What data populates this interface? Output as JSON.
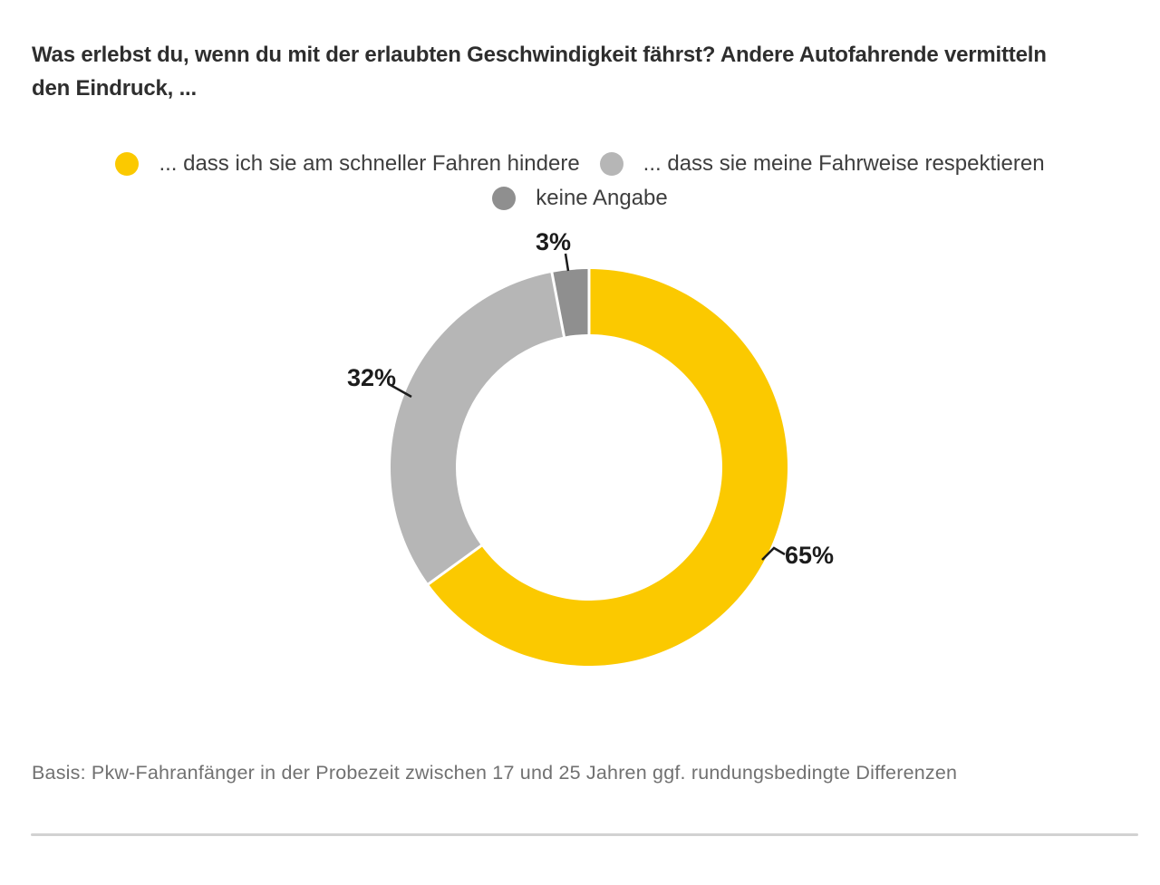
{
  "page": {
    "title_lines": [
      "Was erlebst du, wenn du mit der erlaubten Geschwindigkeit fährst? Andere Autofahrende vermitteln",
      "den Eindruck, ..."
    ],
    "footnote": "Basis: Pkw-Fahranfänger in der Probezeit zwischen 17 und 25 Jahren ggf. rundungsbedingte Differenzen"
  },
  "chart_data": {
    "type": "pie",
    "variant": "donut",
    "title": "Was erlebst du, wenn du mit der erlaubten Geschwindigkeit fährst? Andere Autofahrende vermitteln den Eindruck, ...",
    "categories": [
      "... dass ich sie am schneller Fahren hindere",
      "... dass sie meine Fahrweise respektieren",
      "keine Angabe"
    ],
    "values": [
      65,
      32,
      3
    ],
    "unit": "%",
    "segments": [
      {
        "label": "... dass ich sie am schneller Fahren hindere",
        "value": 65,
        "display": "65%",
        "color": "#FBC900"
      },
      {
        "label": "... dass sie meine Fahrweise respektieren",
        "value": 32,
        "display": "32%",
        "color": "#B6B6B6"
      },
      {
        "label": "keine Angabe",
        "value": 3,
        "display": "3%",
        "color": "#8F8F8F"
      }
    ],
    "start_angle_deg": 0,
    "direction": "clockwise",
    "inner_radius_ratio": 0.67,
    "legend_position": "top",
    "segment_separator_color": "#FFFFFF"
  },
  "colors": {
    "background": "#FFFFFF",
    "title_text": "#2E2E2E",
    "legend_text": "#3E3E3E",
    "value_label_text": "#1C1C1C",
    "footnote_text": "#717171",
    "divider": "#D2D2D2"
  }
}
